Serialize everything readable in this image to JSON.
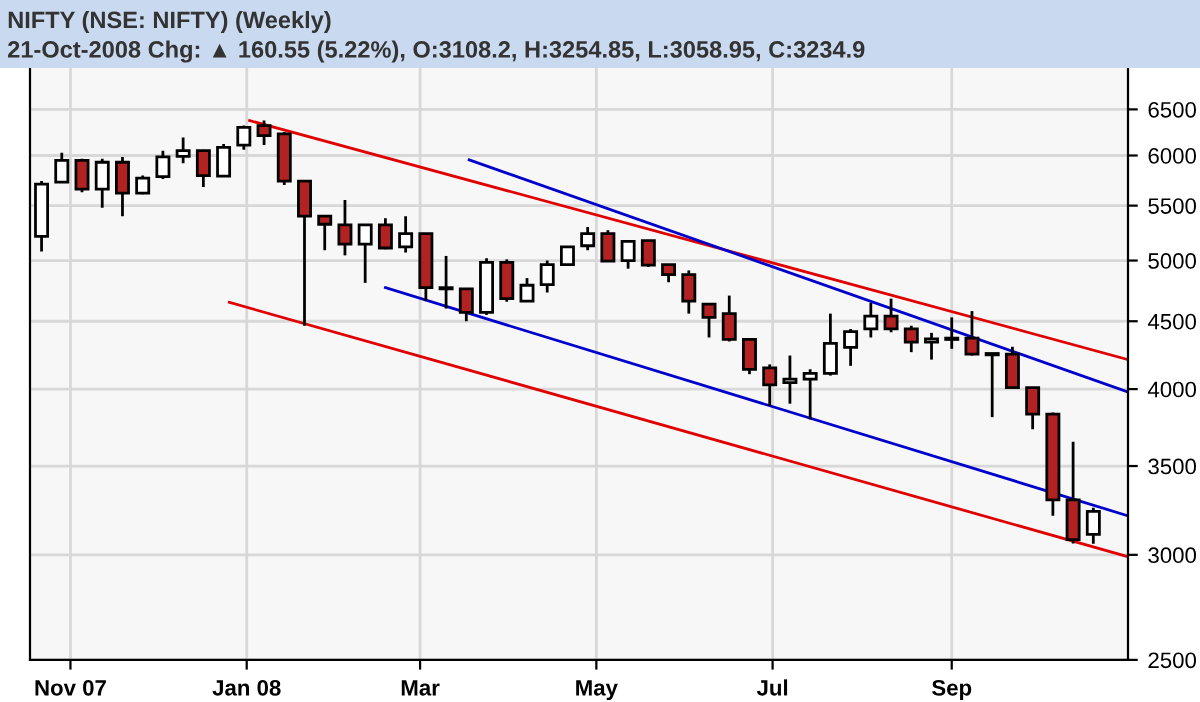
{
  "chart_data": {
    "type": "candlestick",
    "title": "NIFTY (NSE: NIFTY) (Weekly)",
    "subtitle": "21-Oct-2008 Chg: ▲ 160.55 (5.22%), O:3108.2, H:3254.85, L:3058.95, C:3234.9",
    "x": [
      "2007-10-22",
      "2007-10-29",
      "2007-11-05",
      "2007-11-12",
      "2007-11-19",
      "2007-11-26",
      "2007-12-03",
      "2007-12-10",
      "2007-12-17",
      "2007-12-24",
      "2007-12-31",
      "2008-01-07",
      "2008-01-14",
      "2008-01-21",
      "2008-01-28",
      "2008-02-04",
      "2008-02-11",
      "2008-02-18",
      "2008-02-25",
      "2008-03-03",
      "2008-03-10",
      "2008-03-17",
      "2008-03-24",
      "2008-03-31",
      "2008-04-07",
      "2008-04-14",
      "2008-04-21",
      "2008-04-28",
      "2008-05-05",
      "2008-05-12",
      "2008-05-19",
      "2008-05-26",
      "2008-06-02",
      "2008-06-09",
      "2008-06-16",
      "2008-06-23",
      "2008-06-30",
      "2008-07-07",
      "2008-07-14",
      "2008-07-21",
      "2008-07-28",
      "2008-08-04",
      "2008-08-11",
      "2008-08-18",
      "2008-08-25",
      "2008-09-01",
      "2008-09-08",
      "2008-09-15",
      "2008-09-22",
      "2008-09-29",
      "2008-10-06",
      "2008-10-13",
      "2008-10-20"
    ],
    "ohlc": [
      [
        5215,
        5740,
        5080,
        5710
      ],
      [
        5730,
        6030,
        5720,
        5950
      ],
      [
        5950,
        5965,
        5630,
        5660
      ],
      [
        5660,
        5965,
        5480,
        5930
      ],
      [
        5930,
        5985,
        5400,
        5620
      ],
      [
        5620,
        5795,
        5610,
        5770
      ],
      [
        5785,
        6050,
        5760,
        5985
      ],
      [
        5990,
        6190,
        5920,
        6050
      ],
      [
        6050,
        6060,
        5680,
        5795
      ],
      [
        5790,
        6120,
        5780,
        6085
      ],
      [
        6110,
        6320,
        6060,
        6300
      ],
      [
        6320,
        6375,
        6110,
        6210
      ],
      [
        6230,
        6250,
        5700,
        5740
      ],
      [
        5740,
        5740,
        4465,
        5400
      ],
      [
        5400,
        5400,
        5090,
        5325
      ],
      [
        5320,
        5555,
        5045,
        5145
      ],
      [
        5145,
        5320,
        4810,
        5320
      ],
      [
        5320,
        5380,
        5100,
        5110
      ],
      [
        5120,
        5400,
        5070,
        5240
      ],
      [
        5240,
        5240,
        4660,
        4770
      ],
      [
        4770,
        5040,
        4600,
        4760
      ],
      [
        4760,
        4760,
        4500,
        4570
      ],
      [
        4570,
        5020,
        4550,
        4985
      ],
      [
        4985,
        5010,
        4655,
        4680
      ],
      [
        4660,
        4850,
        4660,
        4790
      ],
      [
        4795,
        5000,
        4730,
        4965
      ],
      [
        4965,
        5120,
        4965,
        5120
      ],
      [
        5130,
        5300,
        5090,
        5240
      ],
      [
        5240,
        5270,
        4990,
        4995
      ],
      [
        5000,
        5175,
        4930,
        5170
      ],
      [
        5175,
        5175,
        4945,
        4960
      ],
      [
        4965,
        4965,
        4815,
        4880
      ],
      [
        4880,
        4915,
        4560,
        4660
      ],
      [
        4635,
        4635,
        4375,
        4530
      ],
      [
        4560,
        4705,
        4345,
        4360
      ],
      [
        4360,
        4360,
        4105,
        4140
      ],
      [
        4150,
        4175,
        3885,
        4030
      ],
      [
        4045,
        4240,
        3900,
        4070
      ],
      [
        4070,
        4140,
        3795,
        4110
      ],
      [
        4110,
        4560,
        4095,
        4330
      ],
      [
        4300,
        4440,
        4165,
        4420
      ],
      [
        4440,
        4645,
        4375,
        4540
      ],
      [
        4540,
        4680,
        4415,
        4440
      ],
      [
        4440,
        4465,
        4265,
        4340
      ],
      [
        4340,
        4410,
        4210,
        4365
      ],
      [
        4370,
        4530,
        4290,
        4360
      ],
      [
        4370,
        4580,
        4240,
        4250
      ],
      [
        4255,
        4255,
        3810,
        4245
      ],
      [
        4250,
        4305,
        4005,
        4010
      ],
      [
        4010,
        4010,
        3730,
        3830
      ],
      [
        3830,
        3840,
        3210,
        3300
      ],
      [
        3300,
        3650,
        3060,
        3080
      ],
      [
        3108.2,
        3254.85,
        3058.95,
        3234.9
      ]
    ],
    "colors": [
      "#ffffff",
      "#ffffff",
      "#b22222",
      "#ffffff",
      "#b22222",
      "#ffffff",
      "#ffffff",
      "#ffffff",
      "#b22222",
      "#ffffff",
      "#ffffff",
      "#b22222",
      "#b22222",
      "#b22222",
      "#b22222",
      "#b22222",
      "#ffffff",
      "#b22222",
      "#ffffff",
      "#b22222",
      "#b22222",
      "#b22222",
      "#ffffff",
      "#b22222",
      "#ffffff",
      "#ffffff",
      "#ffffff",
      "#ffffff",
      "#b22222",
      "#ffffff",
      "#b22222",
      "#b22222",
      "#b22222",
      "#b22222",
      "#b22222",
      "#b22222",
      "#b22222",
      "#ffffff",
      "#ffffff",
      "#ffffff",
      "#ffffff",
      "#ffffff",
      "#b22222",
      "#b22222",
      "#ffffff",
      "#b22222",
      "#b22222",
      "#b22222",
      "#b22222",
      "#b22222",
      "#b22222",
      "#b22222",
      "#ffffff"
    ],
    "series": [
      {
        "type": "line",
        "color": "#e00000",
        "x": [
          "2008-01-02",
          "2008-11-01"
        ],
        "values": [
          6375,
          4210
        ]
      },
      {
        "type": "line",
        "color": "#e00000",
        "x": [
          "2007-12-26",
          "2008-11-01"
        ],
        "values": [
          4650,
          2990
        ]
      },
      {
        "type": "line",
        "color": "#0000cc",
        "x": [
          "2008-03-18",
          "2008-11-01"
        ],
        "values": [
          5955,
          3980
        ]
      },
      {
        "type": "line",
        "color": "#0000cc",
        "x": [
          "2008-02-18",
          "2008-11-01"
        ],
        "values": [
          4770,
          3210
        ]
      }
    ],
    "xlim": [
      "2007-10-18",
      "2008-11-01"
    ],
    "xticks": [
      {
        "value": "2007-11-01",
        "label": "Nov 07"
      },
      {
        "value": "2008-01-01",
        "label": "Jan 08"
      },
      {
        "value": "2008-03-01",
        "label": "Mar"
      },
      {
        "value": "2008-05-01",
        "label": "May"
      },
      {
        "value": "2008-07-01",
        "label": "Jul"
      },
      {
        "value": "2008-09-01",
        "label": "Sep"
      }
    ],
    "log": "y",
    "ylim": [
      2500,
      7000
    ],
    "yticks": [
      2500,
      3000,
      3500,
      4000,
      4500,
      5000,
      5500,
      6000,
      6500
    ],
    "grid": true
  }
}
